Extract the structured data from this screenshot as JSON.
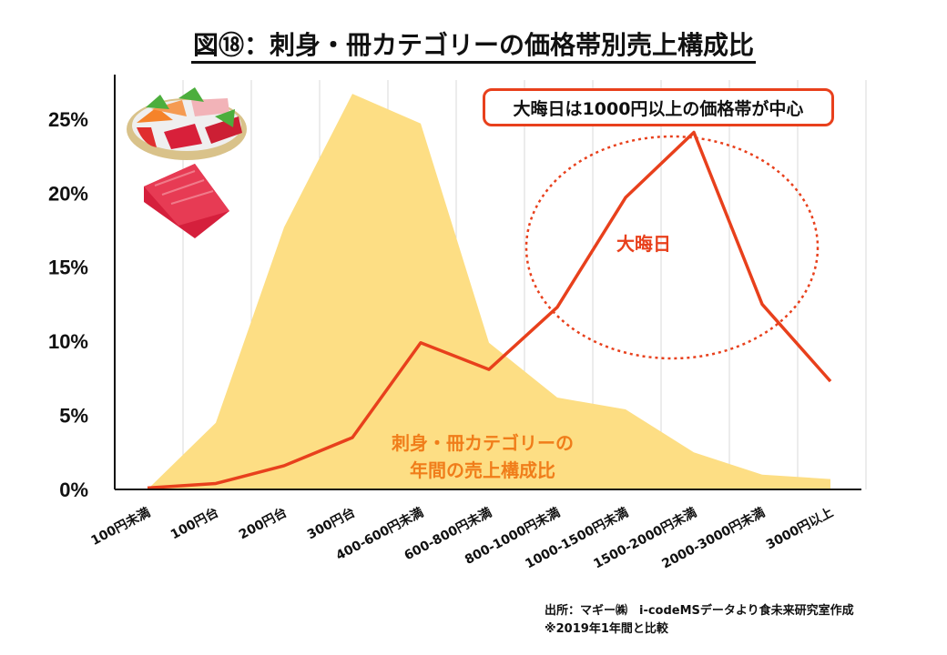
{
  "chart_data": {
    "type": "area+line",
    "title": "図⑱：刺身・冊カテゴリーの価格帯別売上構成比",
    "categories": [
      "100円未満",
      "100円台",
      "200円台",
      "300円台",
      "400-600円未満",
      "600-800円未満",
      "800-1000円未満",
      "1000-1500円未満",
      "1500-2000円未満",
      "2000-3000円未満",
      "3000円以上"
    ],
    "series": [
      {
        "name": "刺身・冊カテゴリーの年間の売上構成比",
        "type": "area",
        "color": "#fdde84",
        "values": [
          0.0,
          4.5,
          17.7,
          26.7,
          24.7,
          9.9,
          6.2,
          5.4,
          2.5,
          1.0,
          0.7
        ]
      },
      {
        "name": "大晦日",
        "type": "line",
        "color": "#e8401c",
        "values": [
          0.1,
          0.4,
          1.6,
          3.5,
          9.9,
          8.1,
          12.3,
          19.7,
          24.1,
          12.5,
          7.3
        ]
      }
    ],
    "ylim": [
      0,
      28
    ],
    "yticks": [
      0,
      5,
      10,
      15,
      20,
      25
    ],
    "ytick_labels": [
      "0%",
      "5%",
      "10%",
      "15%",
      "20%",
      "25%"
    ],
    "grid": "vertical",
    "xlabel": "",
    "ylabel": ""
  },
  "annotations": {
    "callout": "大晦日は1000円以上の価格帯が中心",
    "omisoka_label": "大晦日",
    "annual_label_line1": "刺身・冊カテゴリーの",
    "annual_label_line2": "年間の売上構成比"
  },
  "footnote": {
    "source": "出所：マギー㈱　i-codeMSデータより食未来研究室作成",
    "note": "※2019年1年間と比較"
  },
  "colors": {
    "area": "#fdde84",
    "line": "#e8401c",
    "annotation": "#f07d1a",
    "axis": "#111111",
    "grid": "#d9d9d9"
  },
  "decor": {
    "illustration": "sashimi-platter-and-tuna-block"
  }
}
